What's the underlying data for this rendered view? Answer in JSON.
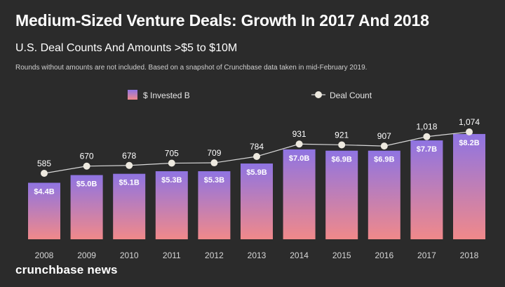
{
  "header": {
    "title": "Medium-Sized Venture Deals: Growth In 2017 And 2018",
    "subtitle": "U.S. Deal Counts And Amounts >$5 to $10M",
    "note": "Rounds without amounts are not included. Based on a snapshot of Crunchbase data taken in mid-February 2019."
  },
  "brand": {
    "name": "crunchbase news"
  },
  "colors": {
    "background": "#2b2b2b",
    "bar_top": "#8f74e2",
    "bar_bottom": "#f0898a",
    "line": "#d8d8d8",
    "marker": "#ede9df"
  },
  "chart_data": {
    "type": "bar",
    "categories": [
      "2008",
      "2009",
      "2010",
      "2011",
      "2012",
      "2013",
      "2014",
      "2015",
      "2016",
      "2017",
      "2018"
    ],
    "series": [
      {
        "name": "$ Invested B",
        "type": "bar",
        "values": [
          4.4,
          5.0,
          5.1,
          5.3,
          5.3,
          5.9,
          7.0,
          6.9,
          6.9,
          7.7,
          8.2
        ],
        "labels": [
          "$4.4B",
          "$5.0B",
          "$5.1B",
          "$5.3B",
          "$5.3B",
          "$5.9B",
          "$7.0B",
          "$6.9B",
          "$6.9B",
          "$7.7B",
          "$8.2B"
        ]
      },
      {
        "name": "Deal Count",
        "type": "line",
        "values": [
          585,
          670,
          678,
          705,
          709,
          784,
          931,
          921,
          907,
          1018,
          1074
        ],
        "labels": [
          "585",
          "670",
          "678",
          "705",
          "709",
          "784",
          "931",
          "921",
          "907",
          "1,018",
          "1,074"
        ]
      }
    ],
    "legend": {
      "position": "top",
      "items": [
        "$ Invested B",
        "Deal Count"
      ]
    },
    "grid": false
  }
}
